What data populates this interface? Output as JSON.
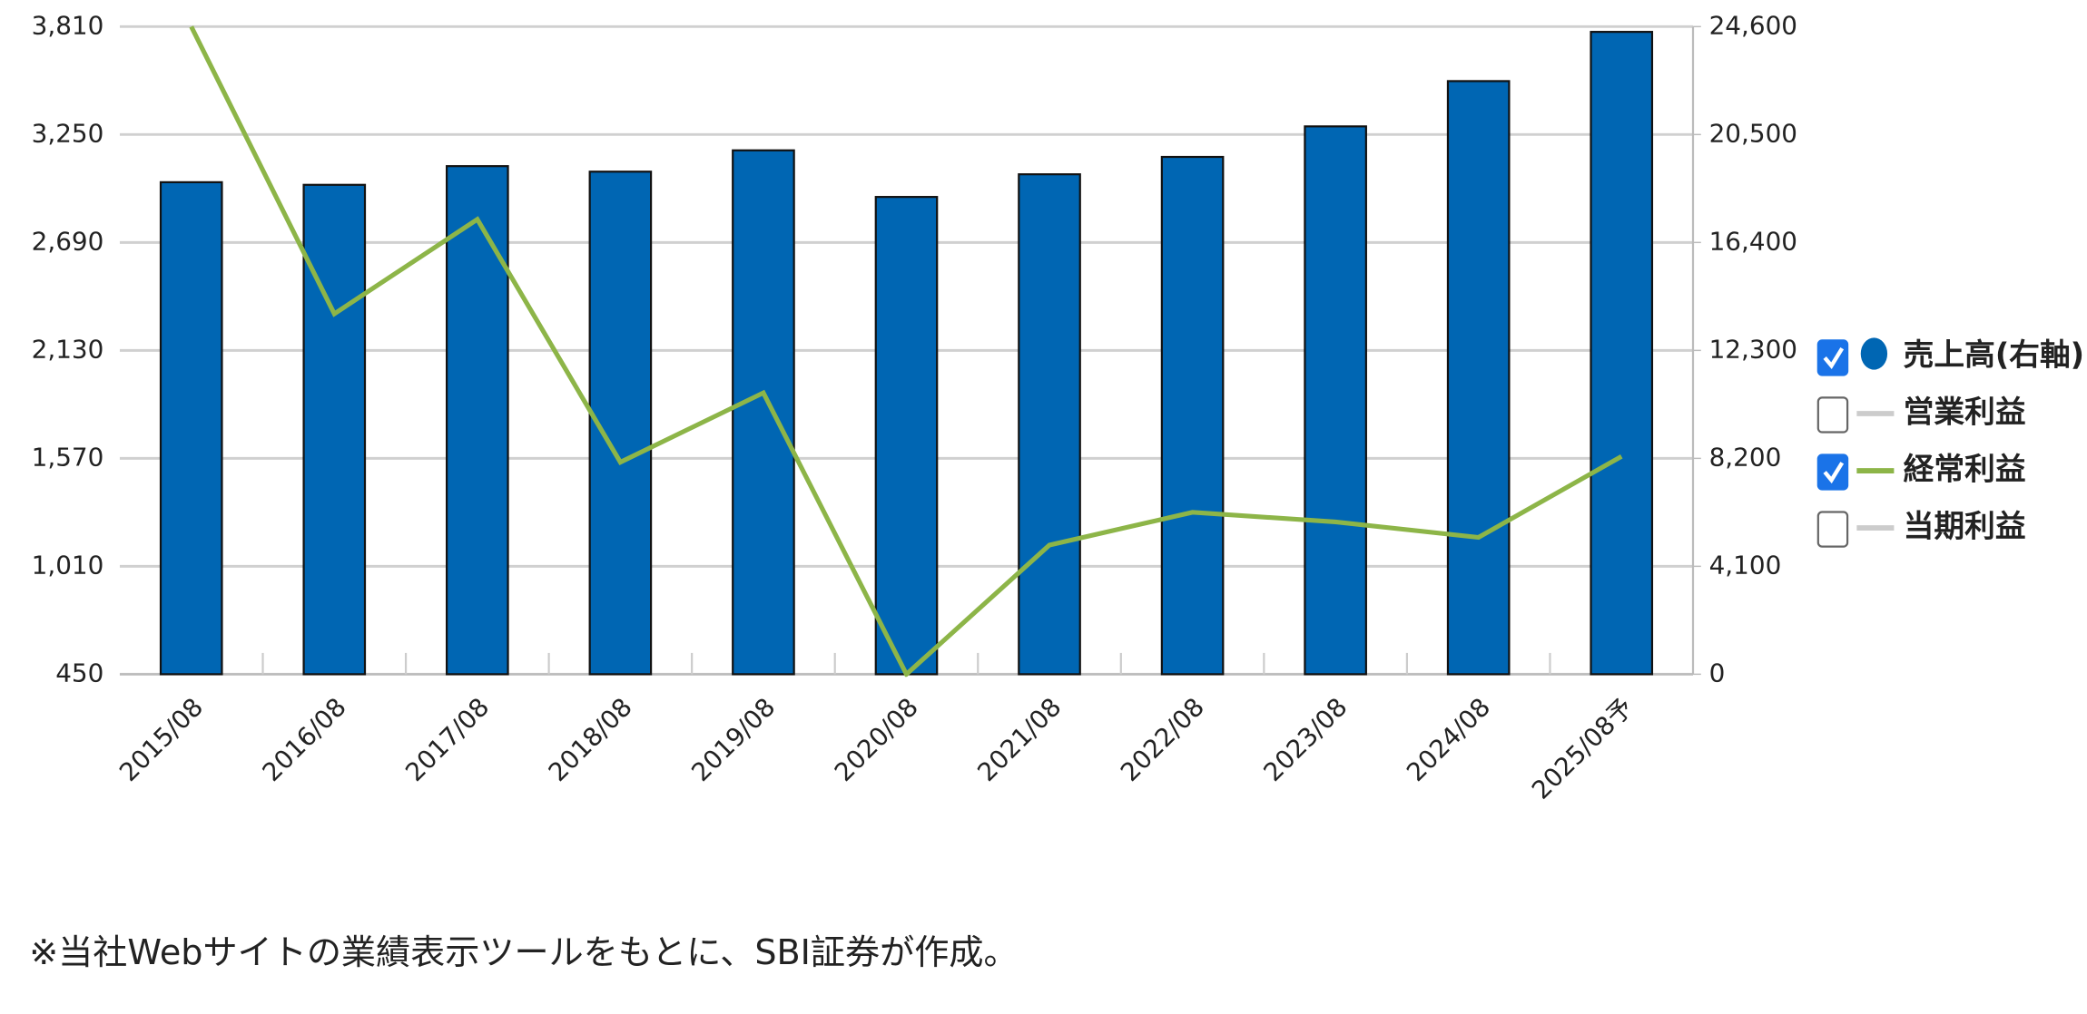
{
  "chart_data": {
    "type": "bar_line",
    "categories": [
      "2015/08",
      "2016/08",
      "2017/08",
      "2018/08",
      "2019/08",
      "2020/08",
      "2021/08",
      "2022/08",
      "2023/08",
      "2024/08",
      "2025/08予"
    ],
    "series": [
      {
        "name": "売上高(右軸)",
        "type": "bar",
        "axis": "y2",
        "color": "#0066b3",
        "visible": true,
        "values": [
          18690,
          18590,
          19300,
          19090,
          19900,
          18130,
          18990,
          19650,
          20810,
          22530,
          24400
        ]
      },
      {
        "name": "営業利益",
        "type": "line",
        "color": "#cccccc",
        "visible": false,
        "values": [
          null,
          null,
          null,
          null,
          null,
          null,
          null,
          null,
          null,
          null,
          null
        ]
      },
      {
        "name": "経常利益",
        "type": "line",
        "color": "#8db548",
        "visible": true,
        "values": [
          3810,
          2320,
          2810,
          1550,
          1910,
          450,
          1120,
          1290,
          1240,
          1160,
          1580
        ]
      },
      {
        "name": "当期利益",
        "type": "line",
        "color": "#cccccc",
        "visible": false,
        "values": [
          null,
          null,
          null,
          null,
          null,
          null,
          null,
          null,
          null,
          null,
          null
        ]
      }
    ],
    "ylim": [
      450,
      3810
    ],
    "yticks": [
      450,
      {
        "value": 1010,
        "label": "1,010"
      },
      {
        "value": 1570,
        "label": "1,570"
      },
      {
        "value": 2130,
        "label": "2,130"
      },
      {
        "value": 2690,
        "label": "2,690"
      },
      {
        "value": 3250,
        "label": "3,250"
      },
      {
        "value": 3810,
        "label": "3,810"
      }
    ],
    "y2lim": [
      0,
      24600
    ],
    "y2ticks": [
      0,
      {
        "value": 4100,
        "label": "4,100"
      },
      {
        "value": 8200,
        "label": "8,200"
      },
      {
        "value": 12300,
        "label": "12,300"
      },
      {
        "value": 16400,
        "label": "16,400"
      },
      {
        "value": 20500,
        "label": "20,500"
      },
      {
        "value": 24600,
        "label": "24,600"
      }
    ],
    "grid": true,
    "legend": "right"
  },
  "note": "※当社Webサイトの業績表示ツールをもとに、SBI証券が作成。"
}
